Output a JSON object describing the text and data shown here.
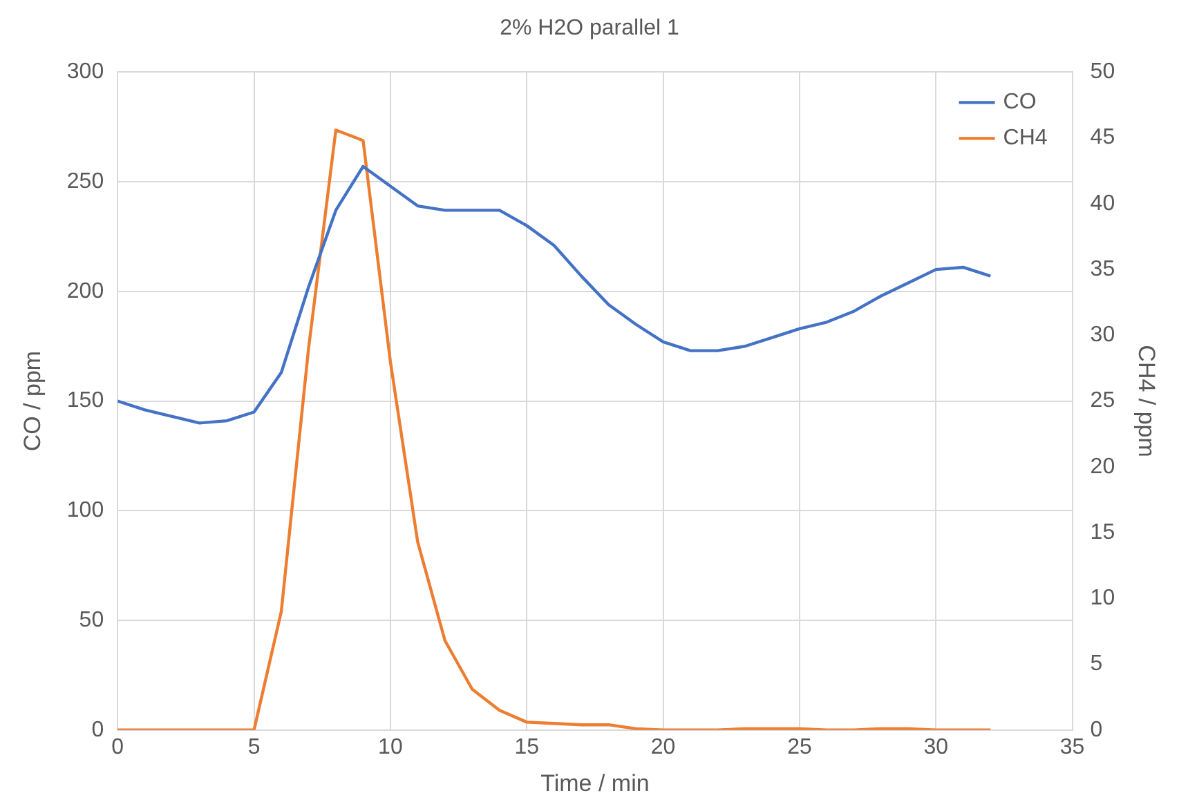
{
  "chart_data": {
    "type": "line",
    "title": "2% H2O parallel 1",
    "xlabel": "Time / min",
    "ylabel": "CO / ppm",
    "y2label": "CH4 / ppm",
    "x": [
      0,
      1,
      2,
      3,
      4,
      5,
      6,
      7,
      8,
      9,
      10,
      11,
      12,
      13,
      14,
      15,
      16,
      17,
      18,
      19,
      20,
      21,
      22,
      23,
      24,
      25,
      26,
      27,
      28,
      29,
      30,
      31,
      32
    ],
    "series": [
      {
        "name": "CO",
        "color": "#4472c4",
        "values": [
          150,
          146,
          143,
          140,
          141,
          145,
          163,
          202,
          237,
          257,
          248,
          239,
          237,
          237,
          237,
          230,
          221,
          207,
          194,
          185,
          177,
          173,
          173,
          175,
          179,
          183,
          186,
          191,
          198,
          204,
          210,
          211,
          207
        ]
      },
      {
        "name": "CH4",
        "color": "#ed7d31",
        "axis": "y2",
        "values": [
          0,
          0,
          0,
          0,
          0,
          0,
          9,
          29,
          45.6,
          44.8,
          28,
          14.3,
          6.8,
          3.1,
          1.5,
          0.6,
          0.5,
          0.4,
          0.4,
          0.1,
          0,
          0,
          0,
          0.1,
          0.1,
          0.1,
          0,
          0,
          0.1,
          0.1,
          0,
          0,
          0
        ]
      }
    ],
    "xlim": [
      0,
      35
    ],
    "xticks": [
      0,
      5,
      10,
      15,
      20,
      25,
      30,
      35
    ],
    "ylim": [
      0,
      300
    ],
    "yticks": [
      0,
      50,
      100,
      150,
      200,
      250,
      300
    ],
    "y2lim": [
      0,
      50
    ],
    "y2ticks": [
      0,
      5,
      10,
      15,
      20,
      25,
      30,
      35,
      40,
      45,
      50
    ],
    "grid": true,
    "legend": "top right",
    "marker": "none",
    "line_style": "solid"
  }
}
